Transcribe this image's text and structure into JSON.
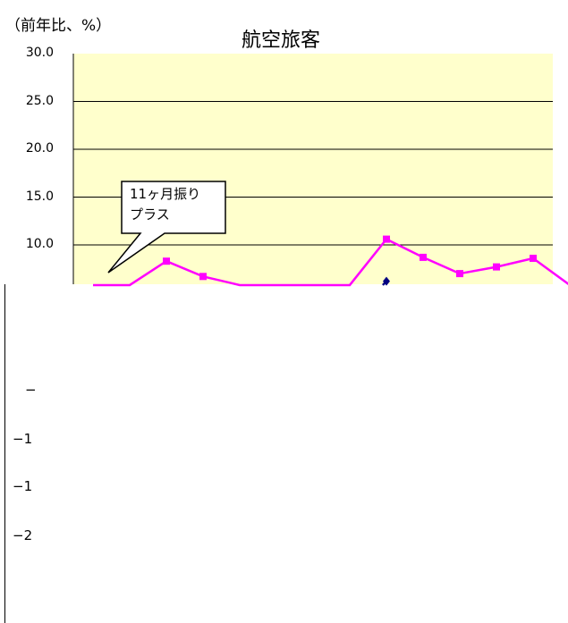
{
  "chart_data": {
    "type": "line",
    "title": "航空旅客",
    "ylabel": "（前年比、%）",
    "ylim": [
      5.8,
      30.0
    ],
    "y_ticks": [
      "30.0",
      "25.0",
      "20.0",
      "15.0",
      "10.0"
    ],
    "grid": true,
    "series": [
      {
        "color": "#ff00ff",
        "marker": "square",
        "points": [
          {
            "x": 0,
            "y": 5.8
          },
          {
            "x": 1,
            "y": 5.8
          },
          {
            "x": 2,
            "y": 8.3
          },
          {
            "x": 3,
            "y": 6.7
          },
          {
            "x": 4,
            "y": 5.8
          },
          {
            "x": 7,
            "y": 5.8
          },
          {
            "x": 8,
            "y": 10.6
          },
          {
            "x": 9,
            "y": 8.7
          },
          {
            "x": 10,
            "y": 7.0
          },
          {
            "x": 11,
            "y": 7.7
          },
          {
            "x": 12,
            "y": 8.6
          },
          {
            "x": 13,
            "y": 5.8
          }
        ]
      },
      {
        "color": "#000080",
        "marker": "diamond",
        "points": [
          {
            "x": 7.9,
            "y": 5.8
          },
          {
            "x": 8,
            "y": 6.2
          }
        ]
      }
    ],
    "annotation": "11ヶ月振り\nプラス"
  },
  "lower_axis_labels": [
    "−",
    "−1",
    "−1",
    "−2"
  ],
  "colors": {
    "plot_bg": "#ffffcc",
    "grid": "#000000"
  }
}
